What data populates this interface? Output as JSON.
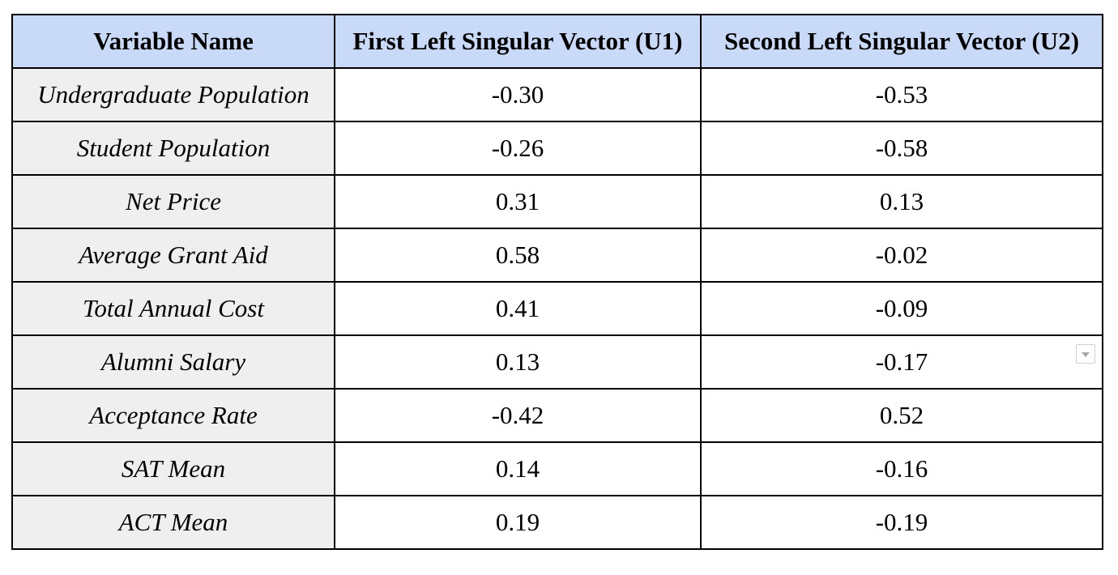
{
  "table": {
    "headers": [
      "Variable Name",
      "First Left Singular Vector (U1)",
      "Second Left Singular Vector (U2)"
    ],
    "rows": [
      [
        "Undergraduate Population",
        "-0.30",
        "-0.53"
      ],
      [
        "Student Population",
        "-0.26",
        "-0.58"
      ],
      [
        "Net Price",
        "0.31",
        "0.13"
      ],
      [
        "Average Grant Aid",
        "0.58",
        "-0.02"
      ],
      [
        "Total Annual Cost",
        "0.41",
        "-0.09"
      ],
      [
        "Alumni Salary",
        "0.13",
        "-0.17"
      ],
      [
        "Acceptance Rate",
        "-0.42",
        "0.52"
      ],
      [
        "SAT Mean",
        "0.14",
        "-0.16"
      ],
      [
        "ACT Mean",
        "0.19",
        "-0.19"
      ]
    ]
  },
  "colors": {
    "header_background": "#c9daf8",
    "name_column_background": "#efefef",
    "border": "#000000"
  },
  "icons": {
    "cell_menu": "chevron-down-icon"
  }
}
